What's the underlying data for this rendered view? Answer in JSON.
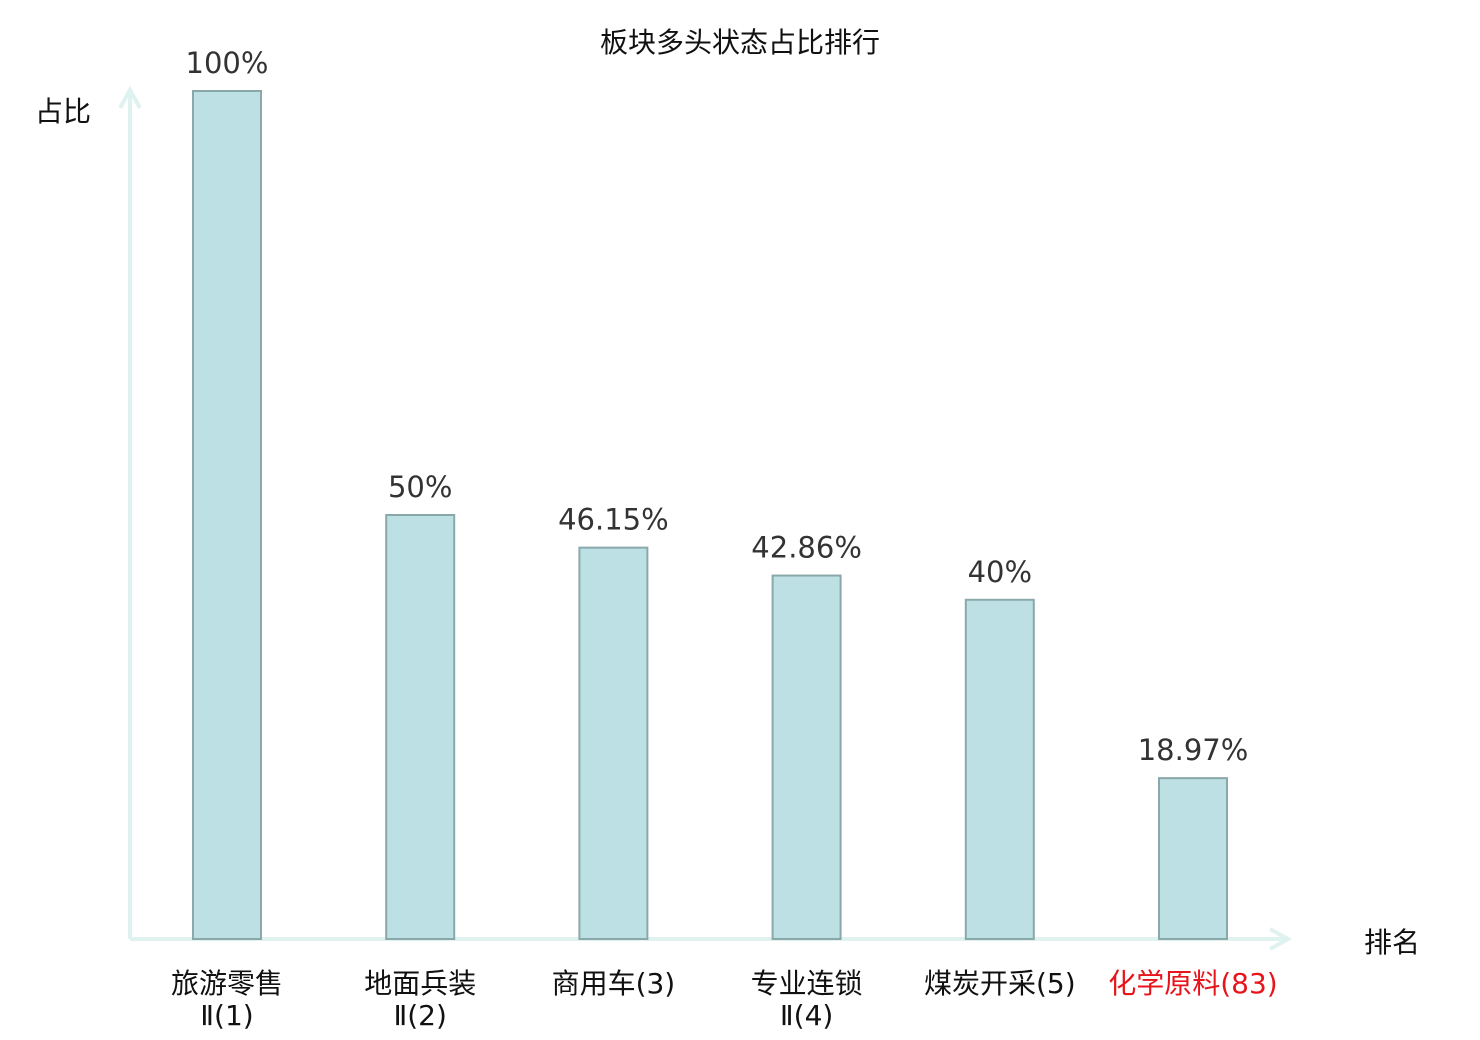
{
  "chart_data": {
    "type": "bar",
    "title": "板块多头状态占比排行",
    "ylabel": "占比",
    "xlabel": "排名",
    "ylim": [
      0,
      100
    ],
    "grid": false,
    "categories": [
      {
        "lines": [
          "旅游零售",
          "Ⅱ(1)"
        ],
        "highlight": false
      },
      {
        "lines": [
          "地面兵装",
          "Ⅱ(2)"
        ],
        "highlight": false
      },
      {
        "lines": [
          "商用车(3)"
        ],
        "highlight": false
      },
      {
        "lines": [
          "专业连锁",
          "Ⅱ(4)"
        ],
        "highlight": false
      },
      {
        "lines": [
          "煤炭开采(5)"
        ],
        "highlight": false
      },
      {
        "lines": [
          "化学原料(83)"
        ],
        "highlight": true
      }
    ],
    "values": [
      100,
      50,
      46.15,
      42.86,
      40,
      18.97
    ],
    "value_labels": [
      "100%",
      "50%",
      "46.15%",
      "42.86%",
      "40%",
      "18.97%"
    ],
    "colors": {
      "bar_fill": "#bce0e3",
      "bar_stroke": "#8aa8aa",
      "axis": "#dff2ef",
      "highlight": "#e8141b",
      "text": "#333333"
    }
  }
}
